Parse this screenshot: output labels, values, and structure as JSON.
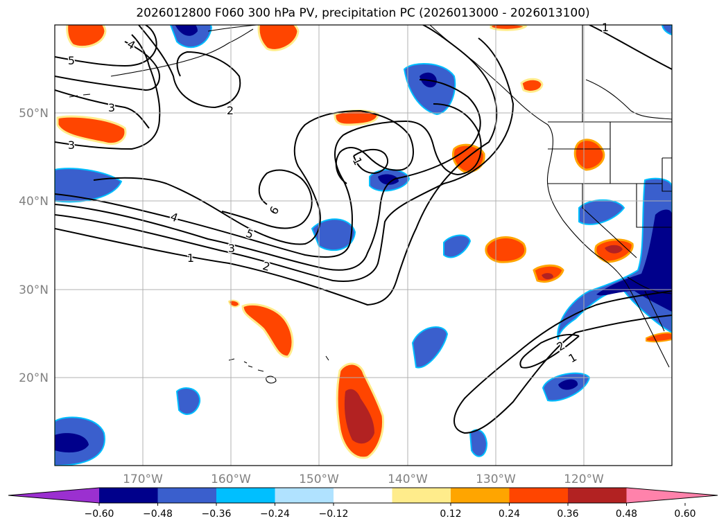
{
  "title": "2026012800 F060 300 hPa PV, precipitation PC (2026013000 - 2026013100)",
  "longitude_labels": [
    "170°W",
    "160°W",
    "150°W",
    "140°W",
    "130°W",
    "120°W"
  ],
  "latitude_labels": [
    "50°N",
    "40°N",
    "30°N",
    "20°N"
  ],
  "contour_labels": {
    "c1_north": "1",
    "c1_mid": "1",
    "c1_south": "1",
    "c2_north": "2",
    "c2_mid": "2",
    "c2_south": "2",
    "c3_west": "3",
    "c3_northwest": "3",
    "c3_mid": "3",
    "c4_north": "4",
    "c4_mid": "4",
    "c5_north": "5",
    "c5_mid": "5",
    "c6": "6"
  },
  "colorbar": {
    "ticks": [
      "−0.60",
      "−0.48",
      "−0.36",
      "−0.24",
      "−0.12",
      "0.12",
      "0.24",
      "0.36",
      "0.48",
      "0.60"
    ],
    "colors": [
      "#9b30d0",
      "#00008b",
      "#3a5fcd",
      "#00bfff",
      "#b0e2ff",
      "#ffffff",
      "#ffec8b",
      "#ffa500",
      "#ff4500",
      "#b22222",
      "#ff82ab"
    ]
  }
}
